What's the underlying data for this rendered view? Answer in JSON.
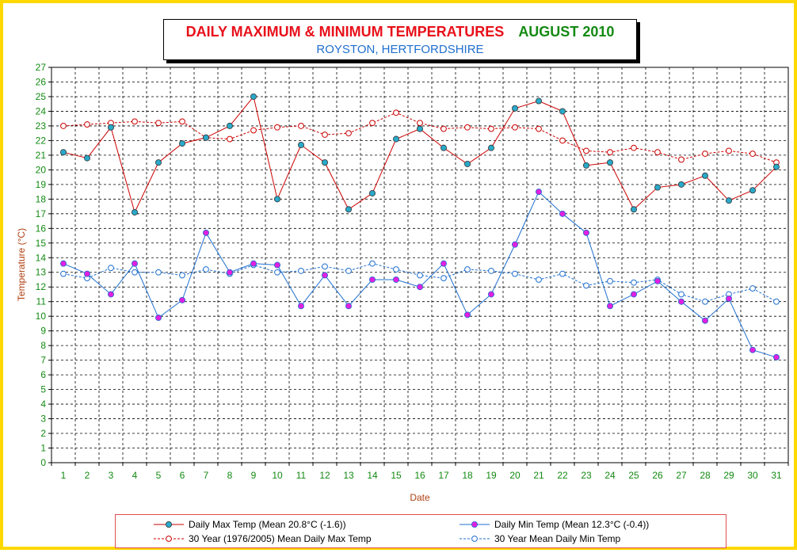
{
  "title": {
    "main": "DAILY MAXIMUM &  MINIMUM  TEMPERATURES",
    "month": "AUGUST 2010",
    "subtitle": "ROYSTON, HERTFORDSHIRE"
  },
  "colors": {
    "border": "#ffd800",
    "title_red": "#e8101a",
    "title_green": "#138a13",
    "subtitle_blue": "#1f6fcf",
    "max_line": "#cc0000",
    "min_line": "#1f6fcf",
    "marker_max_fill": "#2aa9c9",
    "marker_min_fill": "#e020e0",
    "axis_label": "#b04010",
    "tick_label": "#138a13"
  },
  "chart_data": {
    "type": "line",
    "xlabel": "Date",
    "ylabel": "Temperature (°C)",
    "ylim": [
      0,
      27
    ],
    "yticks": [
      0,
      1,
      2,
      3,
      4,
      5,
      6,
      7,
      8,
      9,
      10,
      11,
      12,
      13,
      14,
      15,
      16,
      17,
      18,
      19,
      20,
      21,
      22,
      23,
      24,
      25,
      26,
      27
    ],
    "x": [
      1,
      2,
      3,
      4,
      5,
      6,
      7,
      8,
      9,
      10,
      11,
      12,
      13,
      14,
      15,
      16,
      17,
      18,
      19,
      20,
      21,
      22,
      23,
      24,
      25,
      26,
      27,
      28,
      29,
      30,
      31
    ],
    "grid": true,
    "legend_placement": "bottom",
    "series": [
      {
        "name": "Daily Max Temp (Mean 20.8°C (-1.6))",
        "style": "solid",
        "color": "#cc0000",
        "marker": "filled-max",
        "values": [
          21.2,
          20.8,
          22.9,
          17.1,
          20.5,
          21.8,
          22.2,
          23.0,
          25.0,
          18.0,
          21.7,
          20.5,
          17.3,
          18.4,
          22.1,
          22.8,
          21.5,
          20.4,
          21.5,
          24.2,
          24.7,
          24.0,
          20.3,
          20.5,
          17.3,
          18.8,
          19.0,
          19.6,
          17.9,
          18.6,
          20.2
        ]
      },
      {
        "name": "Daily Min Temp (Mean 12.3°C (-0.4))",
        "style": "solid",
        "color": "#1f6fcf",
        "marker": "filled-min",
        "values": [
          13.6,
          12.9,
          11.5,
          13.6,
          9.9,
          11.1,
          15.7,
          13.0,
          13.6,
          13.5,
          10.7,
          12.8,
          10.7,
          12.5,
          12.5,
          12.0,
          13.6,
          10.1,
          11.5,
          14.9,
          18.5,
          17.0,
          15.7,
          10.7,
          11.5,
          12.4,
          11.0,
          9.7,
          11.2,
          7.7,
          7.2
        ]
      },
      {
        "name": "30 Year (1976/2005) Mean Daily Max Temp",
        "style": "dashed",
        "color": "#cc0000",
        "marker": "open-max",
        "values": [
          23.0,
          23.1,
          23.2,
          23.3,
          23.2,
          23.3,
          22.2,
          22.1,
          22.7,
          22.9,
          23.0,
          22.4,
          22.5,
          23.2,
          23.9,
          23.2,
          22.8,
          22.9,
          22.8,
          22.9,
          22.8,
          22.0,
          21.3,
          21.2,
          21.5,
          21.2,
          20.7,
          21.1,
          21.3,
          21.1,
          20.5
        ]
      },
      {
        "name": "30 Year Mean Daily Min Temp",
        "style": "dashed",
        "color": "#1f6fcf",
        "marker": "open-min",
        "values": [
          12.9,
          12.6,
          13.3,
          13.0,
          13.0,
          12.8,
          13.2,
          12.9,
          13.5,
          13.0,
          13.1,
          13.4,
          13.1,
          13.6,
          13.2,
          12.8,
          12.6,
          13.2,
          13.1,
          12.9,
          12.5,
          12.9,
          12.1,
          12.4,
          12.3,
          12.5,
          11.5,
          11.0,
          11.5,
          11.9,
          11.0
        ]
      }
    ]
  }
}
